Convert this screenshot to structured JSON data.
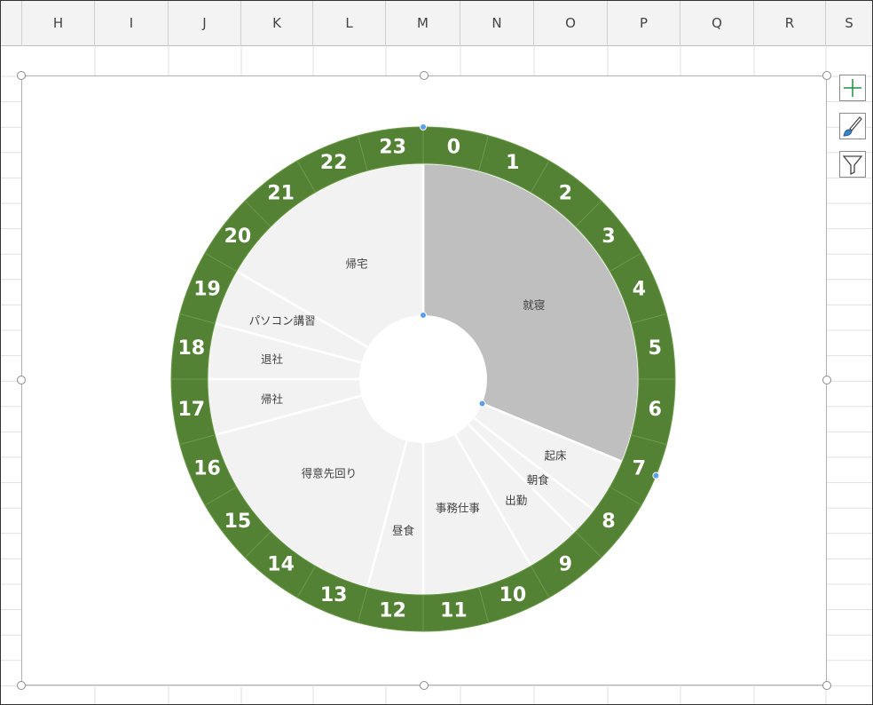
{
  "columns": [
    "H",
    "I",
    "J",
    "K",
    "L",
    "M",
    "N",
    "O",
    "P",
    "Q",
    "R",
    "S"
  ],
  "colors": {
    "ring": "#548235",
    "ring_label": "#ffffff",
    "activity_fill": "#f2f2f2",
    "sleep_fill": "#bfbfbf",
    "activity_label": "#404040"
  },
  "icons": [
    "chart-elements-icon",
    "chart-styles-icon",
    "chart-filters-icon"
  ],
  "chart_data": [
    {
      "type": "pie",
      "subtype": "doughnut",
      "role": "hour-ring",
      "categories": [
        "0",
        "1",
        "2",
        "3",
        "4",
        "5",
        "6",
        "7",
        "8",
        "9",
        "10",
        "11",
        "12",
        "13",
        "14",
        "15",
        "16",
        "17",
        "18",
        "19",
        "20",
        "21",
        "22",
        "23"
      ],
      "values": [
        1,
        1,
        1,
        1,
        1,
        1,
        1,
        1,
        1,
        1,
        1,
        1,
        1,
        1,
        1,
        1,
        1,
        1,
        1,
        1,
        1,
        1,
        1,
        1
      ]
    },
    {
      "type": "pie",
      "role": "daily-schedule",
      "categories": [
        "就寝",
        "起床",
        "朝食",
        "出勤",
        "事務仕事",
        "昼食",
        "得意先回り",
        "帰社",
        "退社",
        "パソコン講習",
        "帰宅"
      ],
      "values": [
        7.5,
        1,
        0.5,
        1,
        2,
        1,
        4,
        1,
        1,
        1,
        4
      ]
    }
  ]
}
